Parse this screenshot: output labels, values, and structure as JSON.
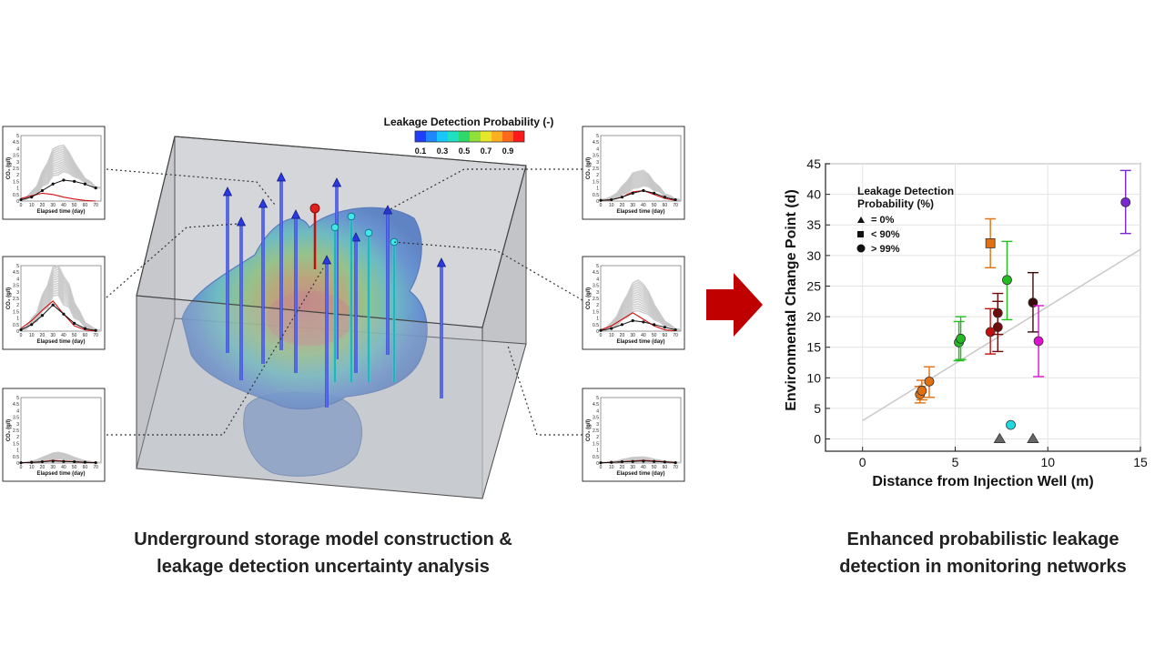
{
  "colorbar": {
    "title": "Leakage Detection Probability (-)",
    "ticks": [
      "0.1",
      "0.3",
      "0.5",
      "0.7",
      "0.9"
    ],
    "colors": [
      "#1f3dff",
      "#1f86ff",
      "#19c7ff",
      "#1fe0c0",
      "#2fd86a",
      "#8fe03a",
      "#e6e62a",
      "#ffb020",
      "#ff6a1a",
      "#ff1a1a"
    ]
  },
  "mini_charts": {
    "ylabel": "CO₂ (g/l)",
    "xlabel": "Elapsed time (day)",
    "yticks": [
      "0",
      "0.5",
      "1",
      "1.5",
      "2",
      "2.5",
      "3",
      "3.5",
      "4",
      "4.5",
      "5"
    ],
    "xticks": [
      "0",
      "10",
      "20",
      "30",
      "40",
      "50",
      "60",
      "70"
    ],
    "panels": [
      {
        "id": "top-left"
      },
      {
        "id": "mid-left"
      },
      {
        "id": "bottom-left"
      },
      {
        "id": "top-right"
      },
      {
        "id": "mid-right"
      },
      {
        "id": "bottom-right"
      }
    ]
  },
  "legend": {
    "title_line1": "Leakage Detection",
    "title_line2": "Probability (%)",
    "items": [
      {
        "marker": "triangle",
        "label": "= 0%"
      },
      {
        "marker": "square",
        "label": "< 90%"
      },
      {
        "marker": "circle",
        "label": "> 99%"
      }
    ]
  },
  "colors": {
    "arrow": "#c00000",
    "trendline": "#c8c8c8",
    "box_fill": "#c9cbd0"
  },
  "chart_data": {
    "type": "scatter",
    "title": "",
    "xlabel": "Distance from Injection Well (m)",
    "ylabel": "Environmental Change Point (d)",
    "xlim": [
      -2,
      15
    ],
    "ylim": [
      -2,
      45
    ],
    "xticks": [
      0,
      5,
      10,
      15
    ],
    "yticks": [
      0,
      5,
      10,
      15,
      20,
      25,
      30,
      35,
      40,
      45
    ],
    "grid": true,
    "trend_line": {
      "x": [
        0,
        15
      ],
      "y": [
        3,
        31
      ]
    },
    "points": [
      {
        "x": 3.1,
        "y": 7.3,
        "err": [
          5.9,
          8.6
        ],
        "marker": "circle",
        "color": "#e07010"
      },
      {
        "x": 3.2,
        "y": 7.9,
        "err": [
          6.4,
          9.6
        ],
        "marker": "circle",
        "color": "#e07010"
      },
      {
        "x": 3.6,
        "y": 9.4,
        "err": [
          6.8,
          11.8
        ],
        "marker": "circle",
        "color": "#e07010"
      },
      {
        "x": 5.2,
        "y": 15.8,
        "err": [
          12.8,
          19.2
        ],
        "marker": "circle",
        "color": "#22bb22"
      },
      {
        "x": 5.3,
        "y": 16.4,
        "err": [
          13.0,
          20.0
        ],
        "marker": "circle",
        "color": "#22bb22"
      },
      {
        "x": 6.9,
        "y": 17.5,
        "err": [
          13.9,
          21.3
        ],
        "marker": "circle",
        "color": "#c01010"
      },
      {
        "x": 7.3,
        "y": 18.3,
        "err": [
          14.3,
          22.5
        ],
        "marker": "circle",
        "color": "#6e0a0a"
      },
      {
        "x": 7.3,
        "y": 20.6,
        "err": [
          17.1,
          23.8
        ],
        "marker": "circle",
        "color": "#6e0a0a"
      },
      {
        "x": 7.8,
        "y": 26.0,
        "err": [
          19.5,
          32.3
        ],
        "marker": "circle",
        "color": "#22bb22"
      },
      {
        "x": 6.9,
        "y": 32.0,
        "err": [
          28.0,
          36.0
        ],
        "marker": "square",
        "color": "#e07010"
      },
      {
        "x": 9.2,
        "y": 22.3,
        "err": [
          17.5,
          27.2
        ],
        "marker": "circle",
        "color": "#3a0a0a"
      },
      {
        "x": 9.5,
        "y": 16.0,
        "err": [
          10.2,
          21.8
        ],
        "marker": "circle",
        "color": "#e010d0"
      },
      {
        "x": 14.2,
        "y": 38.7,
        "err": [
          33.6,
          43.9
        ],
        "marker": "circle",
        "color": "#7a28d0"
      },
      {
        "x": 8.0,
        "y": 2.3,
        "marker": "circle",
        "color": "#22d8e0"
      },
      {
        "x": 7.4,
        "y": 0,
        "marker": "triangle",
        "color": "#666666"
      },
      {
        "x": 9.2,
        "y": 0,
        "marker": "triangle",
        "color": "#666666"
      }
    ]
  },
  "captions": {
    "left_line1": "Underground storage model construction &",
    "left_line2": "leakage detection uncertainty analysis",
    "right_line1": "Enhanced probabilistic leakage",
    "right_line2": "detection in monitoring networks"
  }
}
